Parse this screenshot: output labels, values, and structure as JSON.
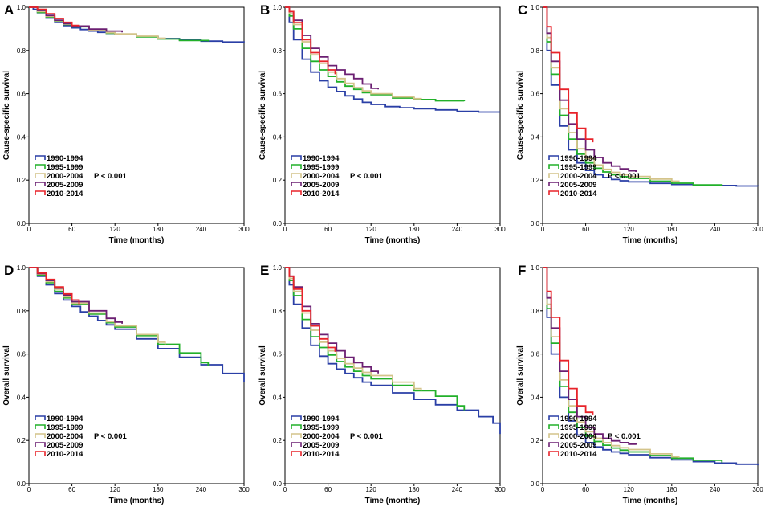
{
  "figure": {
    "series_names": [
      "1990-1994",
      "1995-1999",
      "2000-2004",
      "2005-2009",
      "2010-2014"
    ],
    "colors": [
      "#2a3fa6",
      "#22b02a",
      "#d4c48a",
      "#6b1f72",
      "#e8232a"
    ],
    "p_value_label": "P < 0.001",
    "x_label": "Time (months)",
    "x_ticks": [
      "0",
      "60",
      "120",
      "180",
      "240",
      "300"
    ],
    "y_ticks": [
      "0.0",
      "0.2",
      "0.4",
      "0.6",
      "0.8",
      "1.0"
    ]
  },
  "chart_data": [
    {
      "panel": "A",
      "type": "line",
      "step": true,
      "ylabel": "Cause-specific survival",
      "xlabel": "Time (months)",
      "xlim": [
        0,
        300
      ],
      "ylim": [
        0,
        1
      ],
      "series": [
        {
          "name": "1990-1994",
          "x": [
            0,
            6,
            12,
            24,
            36,
            48,
            60,
            72,
            84,
            96,
            108,
            120,
            150,
            180,
            210,
            240,
            270,
            300
          ],
          "y": [
            1.0,
            0.99,
            0.975,
            0.95,
            0.93,
            0.915,
            0.905,
            0.897,
            0.89,
            0.884,
            0.879,
            0.874,
            0.864,
            0.855,
            0.848,
            0.843,
            0.839,
            0.837
          ]
        },
        {
          "name": "1995-1999",
          "x": [
            0,
            12,
            24,
            36,
            48,
            60,
            84,
            108,
            120,
            150,
            180,
            210,
            250
          ],
          "y": [
            1.0,
            0.976,
            0.955,
            0.935,
            0.92,
            0.91,
            0.893,
            0.88,
            0.875,
            0.863,
            0.853,
            0.846,
            0.842
          ]
        },
        {
          "name": "2000-2004",
          "x": [
            0,
            12,
            24,
            36,
            48,
            60,
            84,
            108,
            120,
            150,
            180,
            190
          ],
          "y": [
            1.0,
            0.98,
            0.958,
            0.938,
            0.922,
            0.911,
            0.895,
            0.882,
            0.877,
            0.866,
            0.857,
            0.855
          ]
        },
        {
          "name": "2005-2009",
          "x": [
            0,
            12,
            24,
            36,
            48,
            60,
            84,
            108,
            130
          ],
          "y": [
            1.0,
            0.985,
            0.962,
            0.94,
            0.924,
            0.913,
            0.899,
            0.89,
            0.884
          ]
        },
        {
          "name": "2010-2014",
          "x": [
            0,
            12,
            24,
            36,
            48,
            60,
            70
          ],
          "y": [
            1.0,
            0.99,
            0.97,
            0.948,
            0.93,
            0.916,
            0.908
          ]
        }
      ]
    },
    {
      "panel": "B",
      "type": "line",
      "step": true,
      "ylabel": "Cause-specific survival",
      "xlabel": "Time (months)",
      "xlim": [
        0,
        300
      ],
      "ylim": [
        0,
        1
      ],
      "series": [
        {
          "name": "1990-1994",
          "x": [
            0,
            6,
            12,
            24,
            36,
            48,
            60,
            72,
            84,
            96,
            108,
            120,
            140,
            160,
            180,
            210,
            240,
            270,
            300
          ],
          "y": [
            1.0,
            0.93,
            0.85,
            0.76,
            0.7,
            0.66,
            0.63,
            0.61,
            0.59,
            0.575,
            0.56,
            0.55,
            0.54,
            0.535,
            0.53,
            0.525,
            0.518,
            0.515,
            0.515
          ]
        },
        {
          "name": "1995-1999",
          "x": [
            0,
            6,
            12,
            24,
            36,
            48,
            60,
            72,
            84,
            96,
            108,
            120,
            150,
            180,
            210,
            250
          ],
          "y": [
            1.0,
            0.96,
            0.9,
            0.81,
            0.75,
            0.71,
            0.68,
            0.655,
            0.635,
            0.62,
            0.605,
            0.595,
            0.58,
            0.573,
            0.567,
            0.565
          ]
        },
        {
          "name": "2000-2004",
          "x": [
            0,
            6,
            12,
            24,
            36,
            48,
            60,
            72,
            84,
            96,
            108,
            120,
            150,
            180,
            190
          ],
          "y": [
            1.0,
            0.97,
            0.92,
            0.84,
            0.78,
            0.74,
            0.7,
            0.67,
            0.648,
            0.628,
            0.613,
            0.6,
            0.585,
            0.577,
            0.575
          ]
        },
        {
          "name": "2005-2009",
          "x": [
            0,
            6,
            12,
            24,
            36,
            48,
            60,
            72,
            84,
            96,
            108,
            120,
            130
          ],
          "y": [
            1.0,
            0.98,
            0.94,
            0.87,
            0.81,
            0.77,
            0.73,
            0.71,
            0.69,
            0.67,
            0.645,
            0.625,
            0.62
          ]
        },
        {
          "name": "2010-2014",
          "x": [
            0,
            6,
            12,
            24,
            36,
            48,
            60,
            70
          ],
          "y": [
            1.0,
            0.98,
            0.93,
            0.85,
            0.79,
            0.75,
            0.71,
            0.69
          ]
        }
      ]
    },
    {
      "panel": "C",
      "type": "line",
      "step": true,
      "ylabel": "Cause-specific survival",
      "xlabel": "Time (months)",
      "xlim": [
        0,
        300
      ],
      "ylim": [
        0,
        1
      ],
      "series": [
        {
          "name": "1990-1994",
          "x": [
            0,
            6,
            12,
            24,
            36,
            48,
            60,
            72,
            84,
            96,
            108,
            120,
            150,
            180,
            210,
            240,
            270,
            300
          ],
          "y": [
            1.0,
            0.8,
            0.64,
            0.45,
            0.34,
            0.28,
            0.245,
            0.225,
            0.212,
            0.203,
            0.197,
            0.192,
            0.185,
            0.18,
            0.177,
            0.175,
            0.173,
            0.172
          ]
        },
        {
          "name": "1995-1999",
          "x": [
            0,
            6,
            12,
            24,
            36,
            48,
            60,
            72,
            84,
            96,
            108,
            120,
            150,
            180,
            210,
            250
          ],
          "y": [
            1.0,
            0.84,
            0.69,
            0.5,
            0.39,
            0.32,
            0.28,
            0.255,
            0.238,
            0.225,
            0.216,
            0.208,
            0.195,
            0.186,
            0.178,
            0.172
          ]
        },
        {
          "name": "2000-2004",
          "x": [
            0,
            6,
            12,
            24,
            36,
            48,
            60,
            72,
            84,
            96,
            108,
            120,
            150,
            180,
            190
          ],
          "y": [
            1.0,
            0.86,
            0.72,
            0.53,
            0.42,
            0.345,
            0.3,
            0.27,
            0.25,
            0.236,
            0.225,
            0.217,
            0.205,
            0.195,
            0.192
          ]
        },
        {
          "name": "2005-2009",
          "x": [
            0,
            6,
            12,
            24,
            36,
            48,
            60,
            72,
            84,
            96,
            108,
            120,
            130
          ],
          "y": [
            1.0,
            0.88,
            0.75,
            0.57,
            0.46,
            0.39,
            0.34,
            0.305,
            0.28,
            0.265,
            0.252,
            0.243,
            0.238
          ]
        },
        {
          "name": "2010-2014",
          "x": [
            0,
            6,
            12,
            24,
            36,
            48,
            60,
            70
          ],
          "y": [
            1.0,
            0.91,
            0.79,
            0.62,
            0.51,
            0.44,
            0.39,
            0.375
          ]
        }
      ]
    },
    {
      "panel": "D",
      "type": "line",
      "step": true,
      "ylabel": "Overall survival",
      "xlabel": "Time (months)",
      "xlim": [
        0,
        300
      ],
      "ylim": [
        0,
        1
      ],
      "series": [
        {
          "name": "1990-1994",
          "x": [
            0,
            12,
            24,
            36,
            48,
            60,
            72,
            84,
            96,
            108,
            120,
            150,
            180,
            210,
            240,
            270,
            300
          ],
          "y": [
            1.0,
            0.96,
            0.92,
            0.88,
            0.85,
            0.82,
            0.795,
            0.775,
            0.755,
            0.735,
            0.715,
            0.67,
            0.625,
            0.585,
            0.55,
            0.51,
            0.47
          ]
        },
        {
          "name": "1995-1999",
          "x": [
            0,
            12,
            24,
            36,
            48,
            60,
            84,
            108,
            120,
            150,
            180,
            210,
            240,
            250
          ],
          "y": [
            1.0,
            0.965,
            0.93,
            0.89,
            0.86,
            0.83,
            0.785,
            0.745,
            0.725,
            0.685,
            0.645,
            0.605,
            0.56,
            0.545
          ]
        },
        {
          "name": "2000-2004",
          "x": [
            0,
            12,
            24,
            36,
            48,
            60,
            84,
            108,
            120,
            150,
            180,
            190
          ],
          "y": [
            1.0,
            0.97,
            0.935,
            0.9,
            0.865,
            0.835,
            0.79,
            0.75,
            0.73,
            0.69,
            0.655,
            0.645
          ]
        },
        {
          "name": "2005-2009",
          "x": [
            0,
            12,
            24,
            36,
            48,
            60,
            84,
            108,
            120,
            130
          ],
          "y": [
            1.0,
            0.972,
            0.94,
            0.905,
            0.872,
            0.842,
            0.8,
            0.765,
            0.748,
            0.74
          ]
        },
        {
          "name": "2010-2014",
          "x": [
            0,
            12,
            24,
            36,
            48,
            60,
            70
          ],
          "y": [
            1.0,
            0.975,
            0.945,
            0.91,
            0.878,
            0.85,
            0.83
          ]
        }
      ]
    },
    {
      "panel": "E",
      "type": "line",
      "step": true,
      "ylabel": "Overall survival",
      "xlabel": "Time (months)",
      "xlim": [
        0,
        300
      ],
      "ylim": [
        0,
        1
      ],
      "series": [
        {
          "name": "1990-1994",
          "x": [
            0,
            6,
            12,
            24,
            36,
            48,
            60,
            72,
            84,
            96,
            108,
            120,
            150,
            180,
            210,
            240,
            270,
            290,
            300
          ],
          "y": [
            1.0,
            0.92,
            0.83,
            0.72,
            0.64,
            0.59,
            0.555,
            0.53,
            0.51,
            0.49,
            0.47,
            0.455,
            0.42,
            0.39,
            0.365,
            0.34,
            0.31,
            0.28,
            0.23
          ]
        },
        {
          "name": "1995-1999",
          "x": [
            0,
            6,
            12,
            24,
            36,
            48,
            60,
            72,
            84,
            96,
            108,
            120,
            150,
            180,
            210,
            240,
            250
          ],
          "y": [
            1.0,
            0.94,
            0.87,
            0.76,
            0.68,
            0.63,
            0.595,
            0.565,
            0.54,
            0.52,
            0.5,
            0.485,
            0.455,
            0.43,
            0.405,
            0.36,
            0.34
          ]
        },
        {
          "name": "2000-2004",
          "x": [
            0,
            6,
            12,
            24,
            36,
            48,
            60,
            72,
            84,
            96,
            108,
            120,
            150,
            180,
            190
          ],
          "y": [
            1.0,
            0.95,
            0.89,
            0.79,
            0.71,
            0.655,
            0.615,
            0.58,
            0.555,
            0.535,
            0.515,
            0.5,
            0.47,
            0.44,
            0.43
          ]
        },
        {
          "name": "2005-2009",
          "x": [
            0,
            6,
            12,
            24,
            36,
            48,
            60,
            72,
            84,
            96,
            108,
            120,
            130
          ],
          "y": [
            1.0,
            0.96,
            0.91,
            0.82,
            0.74,
            0.69,
            0.65,
            0.615,
            0.585,
            0.56,
            0.54,
            0.52,
            0.51
          ]
        },
        {
          "name": "2010-2014",
          "x": [
            0,
            6,
            12,
            24,
            36,
            48,
            60,
            70
          ],
          "y": [
            1.0,
            0.96,
            0.9,
            0.8,
            0.73,
            0.67,
            0.63,
            0.61
          ]
        }
      ]
    },
    {
      "panel": "F",
      "type": "line",
      "step": true,
      "ylabel": "Overall survival",
      "xlabel": "Time (months)",
      "xlim": [
        0,
        300
      ],
      "ylim": [
        0,
        1
      ],
      "series": [
        {
          "name": "1990-1994",
          "x": [
            0,
            6,
            12,
            24,
            36,
            48,
            60,
            72,
            84,
            96,
            108,
            120,
            150,
            180,
            210,
            240,
            270,
            300
          ],
          "y": [
            1.0,
            0.77,
            0.6,
            0.4,
            0.29,
            0.225,
            0.19,
            0.17,
            0.157,
            0.147,
            0.14,
            0.134,
            0.12,
            0.11,
            0.102,
            0.095,
            0.09,
            0.085
          ]
        },
        {
          "name": "1995-1999",
          "x": [
            0,
            6,
            12,
            24,
            36,
            48,
            60,
            72,
            84,
            96,
            108,
            120,
            150,
            180,
            210,
            250
          ],
          "y": [
            1.0,
            0.81,
            0.65,
            0.45,
            0.33,
            0.26,
            0.22,
            0.195,
            0.178,
            0.165,
            0.155,
            0.147,
            0.13,
            0.118,
            0.108,
            0.098
          ]
        },
        {
          "name": "2000-2004",
          "x": [
            0,
            6,
            12,
            24,
            36,
            48,
            60,
            72,
            84,
            96,
            108,
            120,
            150,
            180,
            190
          ],
          "y": [
            1.0,
            0.83,
            0.68,
            0.48,
            0.36,
            0.285,
            0.24,
            0.21,
            0.19,
            0.176,
            0.166,
            0.158,
            0.138,
            0.124,
            0.12
          ]
        },
        {
          "name": "2005-2009",
          "x": [
            0,
            6,
            12,
            24,
            36,
            48,
            60,
            72,
            84,
            96,
            108,
            120,
            130
          ],
          "y": [
            1.0,
            0.86,
            0.72,
            0.52,
            0.39,
            0.31,
            0.26,
            0.23,
            0.21,
            0.198,
            0.19,
            0.183,
            0.18
          ]
        },
        {
          "name": "2010-2014",
          "x": [
            0,
            6,
            12,
            24,
            36,
            48,
            60,
            70
          ],
          "y": [
            1.0,
            0.89,
            0.77,
            0.57,
            0.44,
            0.36,
            0.33,
            0.32
          ]
        }
      ]
    }
  ]
}
